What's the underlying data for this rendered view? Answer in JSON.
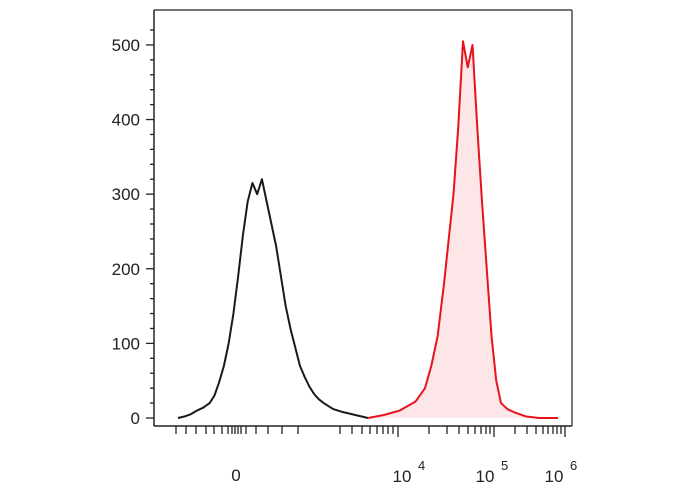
{
  "chart_data": {
    "type": "area",
    "title": "",
    "xlabel": "",
    "ylabel": "",
    "x_scale": "biexponential",
    "ylim": [
      0,
      520
    ],
    "y_ticks": [
      0,
      100,
      200,
      300,
      400,
      500
    ],
    "y_tick_labels": [
      "0",
      "100",
      "200",
      "300",
      "400",
      "500"
    ],
    "x_tick_labels": [
      {
        "base": "0",
        "exp": ""
      },
      {
        "base": "10",
        "exp": "4"
      },
      {
        "base": "10",
        "exp": "5"
      },
      {
        "base": "10",
        "exp": "6"
      }
    ],
    "grid": false,
    "legend": "none",
    "series": [
      {
        "color": "#1a1a1a",
        "fill": "none",
        "x": [
          0,
          0.2,
          0.4,
          0.6,
          0.8,
          1.0,
          1.15,
          1.3,
          1.45,
          1.6,
          1.75,
          1.9,
          2.05,
          2.2,
          2.35,
          2.5,
          2.65,
          2.8,
          2.95,
          3.1,
          3.25,
          3.4,
          3.55,
          3.7,
          3.85,
          4.0,
          4.15,
          4.3,
          4.45,
          4.6,
          4.75,
          4.9,
          5.05,
          5.2,
          5.4,
          5.6,
          5.8,
          6.0
        ],
        "values": [
          0,
          2,
          5,
          10,
          14,
          20,
          30,
          48,
          70,
          100,
          140,
          190,
          245,
          290,
          315,
          300,
          320,
          290,
          260,
          230,
          190,
          150,
          120,
          95,
          70,
          55,
          42,
          32,
          25,
          20,
          16,
          12,
          10,
          8,
          6,
          4,
          2,
          0
        ]
      },
      {
        "color": "#e8131a",
        "fill": "#fde6e8",
        "x": [
          6.0,
          6.5,
          7.0,
          7.5,
          7.8,
          8.0,
          8.2,
          8.4,
          8.55,
          8.7,
          8.85,
          9.0,
          9.15,
          9.3,
          9.45,
          9.6,
          9.75,
          9.9,
          10.05,
          10.2,
          10.4,
          10.6,
          10.8,
          11.0,
          11.2,
          11.4,
          11.6,
          11.8,
          12.0
        ],
        "values": [
          0,
          4,
          10,
          22,
          40,
          70,
          110,
          180,
          240,
          300,
          390,
          505,
          470,
          500,
          390,
          290,
          200,
          110,
          50,
          20,
          12,
          8,
          5,
          2,
          1,
          0,
          0,
          0,
          0
        ]
      }
    ]
  }
}
